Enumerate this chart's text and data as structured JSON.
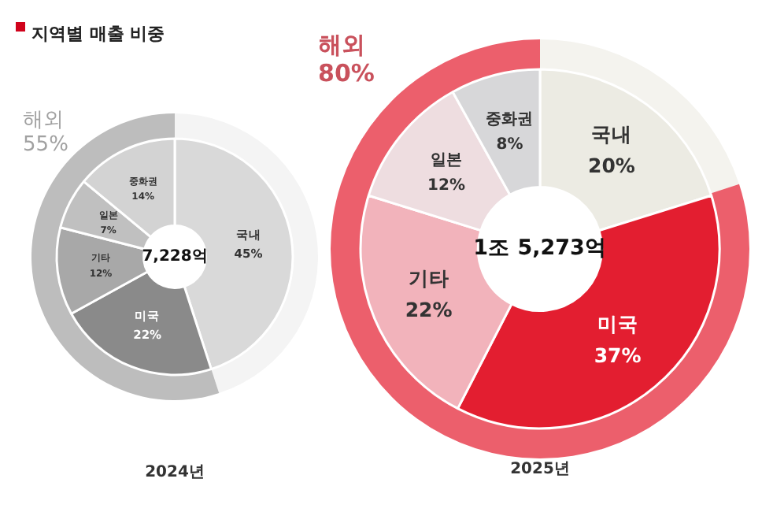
{
  "chart_data": [
    {
      "type": "donut",
      "title": "지역별 매출 비중",
      "categories": [
        null,
        "해외"
      ],
      "values": [
        45,
        55
      ],
      "colors": [
        "#f4f4f4",
        "#bdbdbd"
      ],
      "value_labels": [
        null,
        "55%"
      ]
    },
    {
      "type": "donut",
      "xlabel": "2024년",
      "annotations": [
        "7,228억"
      ],
      "categories": [
        "국내",
        "미국",
        "기타",
        "일본",
        "중화권"
      ],
      "values": [
        45,
        22,
        12,
        7,
        14
      ],
      "colors": [
        "#d9d9d9",
        "#8a8a8a",
        "#a8a8a8",
        "#c0c0c0",
        "#d3d3d3"
      ],
      "value_labels": [
        "45%",
        "22%",
        "12%",
        "7%",
        "14%"
      ]
    },
    {
      "type": "donut",
      "categories": [
        null,
        "해외"
      ],
      "values": [
        20,
        80
      ],
      "colors": [
        "#f4f3ee",
        "#ec5f6c"
      ],
      "value_labels": [
        null,
        "80%"
      ]
    },
    {
      "type": "donut",
      "xlabel": "2025년",
      "annotations": [
        "1조 5,273억"
      ],
      "categories": [
        "국내",
        "미국",
        "기타",
        "일본",
        "중화권"
      ],
      "values": [
        20,
        37,
        22,
        12,
        8
      ],
      "colors": [
        "#ecebe3",
        "#e31e30",
        "#f2b3bb",
        "#eedde0",
        "#d7d7d9"
      ],
      "value_labels": [
        "20%",
        "37%",
        "22%",
        "12%",
        "8%"
      ]
    }
  ]
}
